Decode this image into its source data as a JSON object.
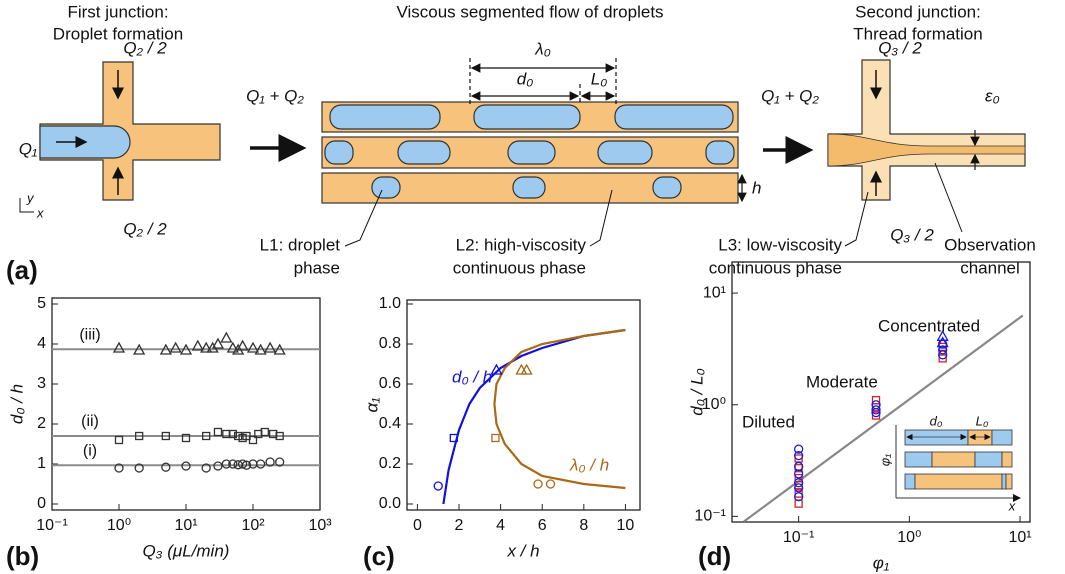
{
  "diagram": {
    "panel": "(a)",
    "junction1": {
      "title": [
        "First junction:",
        "Droplet formation"
      ],
      "inlet_top": "Q₂ / 2",
      "inlet_left": "Q₁",
      "inlet_bottom": "Q₂ / 2",
      "axis_y": "y",
      "axis_x": "x"
    },
    "flow_in": "Q₁ + Q₂",
    "segmented": {
      "title": "Viscous segmented flow of droplets",
      "lambda": "λ₀",
      "d": "d₀",
      "L": "L₀",
      "h": "h"
    },
    "flow_out": "Q₁ + Q₂",
    "junction2": {
      "title": [
        "Second junction:",
        "Thread formation"
      ],
      "inlet_top": "Q₃ / 2",
      "inlet_bottom": "Q₃ / 2",
      "epsilon": "ε₀"
    },
    "labels": {
      "L1": [
        "L1: droplet",
        "phase"
      ],
      "L2": [
        "L2: high-viscosity",
        "continuous phase"
      ],
      "L3": [
        "L3: low-viscosity",
        "continuous phase"
      ],
      "observation": [
        "Observation",
        "channel"
      ]
    }
  },
  "chart_data": [
    {
      "type": "scatter",
      "panel": "(b)",
      "xlabel": "Q₃ (μL/min)",
      "ylabel": "d₀ / h",
      "xscale": "log",
      "xlim": [
        0.1,
        1000
      ],
      "xticks": [
        {
          "value": 0.1,
          "label": "10⁻¹"
        },
        {
          "value": 1,
          "label": "10⁰"
        },
        {
          "value": 10,
          "label": "10¹"
        },
        {
          "value": 100,
          "label": "10²"
        },
        {
          "value": 1000,
          "label": "10³"
        }
      ],
      "ylim": [
        -0.15,
        5.15
      ],
      "yticks": [
        0,
        1,
        2,
        3,
        4,
        5
      ],
      "series": [
        {
          "name": "(i)",
          "marker": "circle",
          "color": "#333333",
          "fit": 0.97,
          "fit_color": "#8c8c8c",
          "x": [
            1,
            2,
            5,
            10,
            20,
            30,
            40,
            50,
            60,
            70,
            80,
            100,
            130,
            180,
            250
          ],
          "values": [
            0.9,
            0.9,
            0.92,
            0.95,
            0.9,
            0.95,
            1.0,
            1.0,
            0.98,
            1.0,
            0.97,
            1.0,
            1.0,
            1.05,
            1.05
          ]
        },
        {
          "name": "(ii)",
          "marker": "square",
          "color": "#333333",
          "fit": 1.7,
          "fit_color": "#8c8c8c",
          "x": [
            1,
            2,
            5,
            10,
            20,
            30,
            40,
            50,
            60,
            70,
            80,
            100,
            120,
            150,
            200,
            250
          ],
          "values": [
            1.6,
            1.7,
            1.7,
            1.65,
            1.7,
            1.8,
            1.75,
            1.75,
            1.7,
            1.65,
            1.7,
            1.6,
            1.75,
            1.8,
            1.75,
            1.7
          ]
        },
        {
          "name": "(iii)",
          "marker": "triangle",
          "color": "#333333",
          "fit": 3.87,
          "fit_color": "#8c8c8c",
          "x": [
            1,
            2,
            5,
            7,
            10,
            15,
            20,
            25,
            30,
            40,
            50,
            60,
            70,
            100,
            130,
            180,
            250
          ],
          "values": [
            3.9,
            3.85,
            3.85,
            3.9,
            3.85,
            3.95,
            3.9,
            3.9,
            4.0,
            4.15,
            3.9,
            3.85,
            3.95,
            3.9,
            3.85,
            3.9,
            3.85
          ]
        }
      ]
    },
    {
      "type": "line",
      "panel": "(c)",
      "xlabel": "x / h",
      "ylabel": "α₁",
      "xlim": [
        -0.5,
        10.7
      ],
      "xticks": [
        0,
        2,
        4,
        6,
        8,
        10
      ],
      "ylim": [
        -0.03,
        1.02
      ],
      "yticks": [
        {
          "value": 0,
          "label": "0.0"
        },
        0.2,
        0.4,
        0.6,
        0.8,
        {
          "value": 1,
          "label": "1.0"
        }
      ],
      "series": [
        {
          "name": "d₀ / h",
          "color": "#1010e0",
          "x": [
            1.25,
            1.5,
            2,
            2.5,
            3,
            4,
            5,
            6,
            7,
            8,
            10
          ],
          "values": [
            0,
            0.17,
            0.37,
            0.5,
            0.58,
            0.68,
            0.74,
            0.78,
            0.81,
            0.84,
            0.87
          ]
        },
        {
          "name": "λ₀ / h",
          "color": "#a86a14",
          "x": [
            10,
            8,
            6,
            5,
            4.2,
            3.8,
            3.7,
            3.8,
            4.2,
            5,
            6,
            8,
            10
          ],
          "values": [
            0.87,
            0.84,
            0.8,
            0.76,
            0.68,
            0.6,
            0.5,
            0.4,
            0.3,
            0.2,
            0.14,
            0.1,
            0.08
          ]
        },
        {
          "marker": "circle",
          "color": "#1010e0",
          "x": [
            1
          ],
          "values": [
            0.09
          ]
        },
        {
          "marker": "square",
          "color": "#1010e0",
          "x": [
            1.75
          ],
          "values": [
            0.33
          ]
        },
        {
          "marker": "triangle",
          "color": "#1010e0",
          "x": [
            3.8
          ],
          "values": [
            0.67
          ]
        },
        {
          "marker": "circle",
          "color": "#a86a14",
          "x": [
            5.8,
            6.4
          ],
          "values": [
            0.1,
            0.1
          ]
        },
        {
          "marker": "square",
          "color": "#a86a14",
          "x": [
            3.75
          ],
          "values": [
            0.33
          ]
        },
        {
          "marker": "triangle",
          "color": "#a86a14",
          "x": [
            5.0,
            5.25
          ],
          "values": [
            0.67,
            0.67
          ]
        }
      ]
    },
    {
      "type": "scatter",
      "panel": "(d)",
      "xlabel": "φ₁",
      "ylabel": "d₀ / L₀",
      "xscale": "log",
      "yscale": "log",
      "xlim": [
        0.025,
        12.3
      ],
      "ylim": [
        0.089,
        19
      ],
      "xticks": [
        {
          "value": 0.1,
          "label": "10⁻¹"
        },
        {
          "value": 1,
          "label": "10⁰"
        },
        {
          "value": 10,
          "label": "10¹"
        }
      ],
      "yticks": [
        {
          "value": 0.1,
          "label": "10⁻¹"
        },
        {
          "value": 1,
          "label": "10⁰"
        },
        {
          "value": 10,
          "label": "10¹"
        }
      ],
      "annotations": [
        "Diluted",
        "Moderate",
        "Concentrated"
      ],
      "inset": {
        "ylabel": "φ₁",
        "xlabel": "x",
        "d": "d₀",
        "L": "L₀"
      },
      "series": [
        {
          "color": "#888888",
          "x": [
            0.032,
            10.6
          ],
          "values": [
            0.09,
            6.3
          ]
        },
        {
          "marker": "square",
          "color": "#d42020",
          "x": [
            0.1,
            0.1,
            0.1,
            0.1,
            0.1,
            0.1,
            0.5,
            0.5,
            0.5,
            2,
            2,
            2
          ],
          "values": [
            0.13,
            0.16,
            0.19,
            0.22,
            0.27,
            0.33,
            0.8,
            0.95,
            1.1,
            2.6,
            3.0,
            3.3
          ]
        },
        {
          "marker": "circle",
          "color": "#1a1adb",
          "x": [
            0.1,
            0.1,
            0.1,
            0.1,
            0.1,
            0.1,
            0.1,
            0.5,
            0.5,
            0.5,
            2,
            2,
            2
          ],
          "values": [
            0.15,
            0.18,
            0.2,
            0.24,
            0.28,
            0.35,
            0.4,
            0.85,
            0.9,
            1.0,
            2.8,
            3.1,
            3.5
          ]
        },
        {
          "marker": "triangle",
          "color": "#1a1adb",
          "x": [
            2,
            2
          ],
          "values": [
            3.6,
            4.1
          ]
        }
      ]
    }
  ]
}
